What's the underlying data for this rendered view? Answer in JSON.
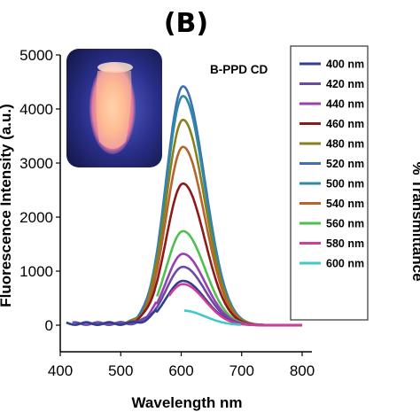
{
  "chart_data": {
    "type": "line",
    "panel_label": "(B)",
    "annotation": "B-PPD CD",
    "xlabel": "Wavelength nm",
    "ylabel": "Fluorescence Intensity (a.u.)",
    "xlim": [
      400,
      800
    ],
    "ylim": [
      0,
      5000
    ],
    "x_ticks": [
      400,
      500,
      600,
      700,
      800
    ],
    "y_ticks": [
      0,
      1000,
      2000,
      3000,
      4000,
      5000
    ],
    "legend_position": "right",
    "grid": false,
    "right_axis_fragment": "% Transmittance",
    "inset_photo": "glowing vial under UV light",
    "series": [
      {
        "name": "400 nm",
        "color": "#2f3e8f",
        "start": 410,
        "end": 800,
        "peak": 603,
        "amplitude": 820
      },
      {
        "name": "420 nm",
        "color": "#6a4aa8",
        "start": 420,
        "end": 800,
        "peak": 603,
        "amplitude": 1080
      },
      {
        "name": "440 nm",
        "color": "#9b3fb0",
        "start": 440,
        "end": 800,
        "peak": 603,
        "amplitude": 1320
      },
      {
        "name": "460 nm",
        "color": "#8b1a1a",
        "start": 460,
        "end": 800,
        "peak": 603,
        "amplitude": 2620
      },
      {
        "name": "480 nm",
        "color": "#8a7f1e",
        "start": 480,
        "end": 800,
        "peak": 603,
        "amplitude": 3800
      },
      {
        "name": "520 nm",
        "color": "#3f6fb5",
        "start": 520,
        "end": 800,
        "peak": 603,
        "amplitude": 4420
      },
      {
        "name": "500 nm",
        "color": "#2e8aa0",
        "start": 500,
        "end": 800,
        "peak": 603,
        "amplitude": 4240
      },
      {
        "name": "540 nm",
        "color": "#b5652b",
        "start": 540,
        "end": 800,
        "peak": 603,
        "amplitude": 3300
      },
      {
        "name": "560 nm",
        "color": "#4fbf4f",
        "start": 560,
        "end": 800,
        "peak": 603,
        "amplitude": 1740
      },
      {
        "name": "580 nm",
        "color": "#d63b9c",
        "start": 580,
        "end": 800,
        "peak": 603,
        "amplitude": 760
      },
      {
        "name": "600 nm",
        "color": "#3fc9c9",
        "start": 605,
        "end": 700,
        "peak": 603,
        "amplitude": 270
      }
    ]
  }
}
